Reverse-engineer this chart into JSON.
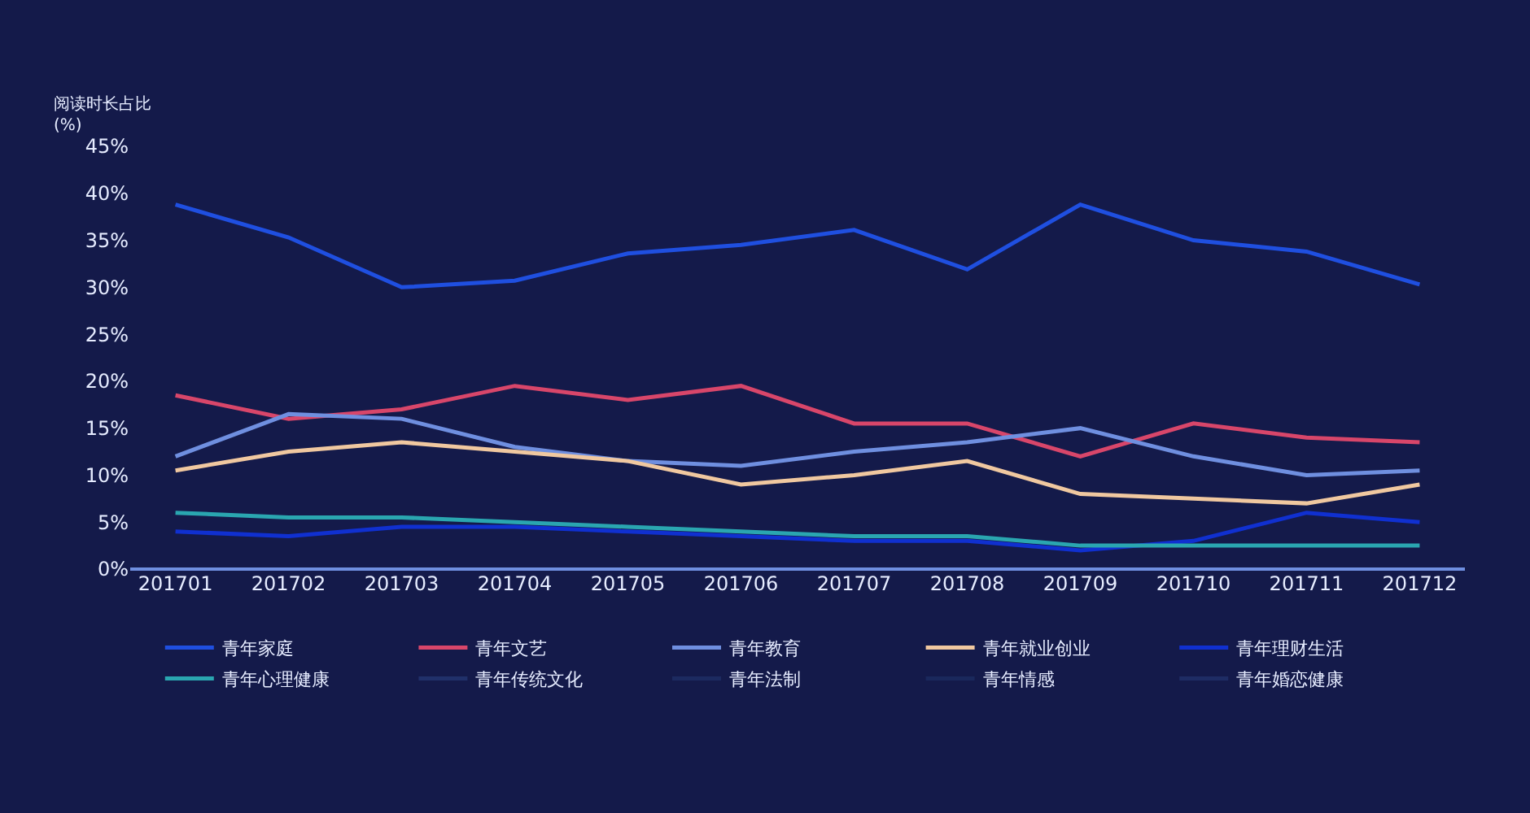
{
  "chart_data": {
    "type": "line",
    "ylabel": "阅读时长占比\n(%)",
    "categories": [
      "201701",
      "201702",
      "201703",
      "201704",
      "201705",
      "201706",
      "201707",
      "201708",
      "201709",
      "201710",
      "201711",
      "201712"
    ],
    "series": [
      {
        "name": "青年家庭",
        "color": "#1f4fe0",
        "values": [
          38.8,
          35.3,
          30,
          30.7,
          33.6,
          34.5,
          36.1,
          31.9,
          38.8,
          35,
          33.8,
          30.3
        ]
      },
      {
        "name": "青年文艺",
        "color": "#d8466a",
        "values": [
          18.5,
          16,
          17,
          19.5,
          18,
          19.5,
          15.5,
          15.5,
          12,
          15.5,
          14,
          13.5
        ]
      },
      {
        "name": "青年教育",
        "color": "#6f8fe0",
        "values": [
          12,
          16.5,
          16,
          13,
          11.5,
          11,
          12.5,
          13.5,
          15,
          12,
          10,
          10.5
        ]
      },
      {
        "name": "青年就业创业",
        "color": "#f0c8a0",
        "values": [
          10.5,
          12.5,
          13.5,
          12.5,
          11.5,
          9,
          10,
          11.5,
          8,
          7.5,
          7,
          9
        ]
      },
      {
        "name": "青年理财生活",
        "color": "#1030d0",
        "values": [
          4,
          3.5,
          4.5,
          4.5,
          4,
          3.5,
          3,
          3,
          2,
          3,
          6,
          5
        ]
      },
      {
        "name": "青年心理健康",
        "color": "#2aa6b0",
        "values": [
          6,
          5.5,
          5.5,
          5,
          4.5,
          4,
          3.5,
          3.5,
          2.5,
          2.5,
          2.5,
          2.5
        ]
      },
      {
        "name": "青年传统文化",
        "color": "#20306a",
        "values": [
          null,
          null,
          null,
          null,
          null,
          null,
          null,
          null,
          null,
          null,
          null,
          null
        ]
      },
      {
        "name": "青年法制",
        "color": "#1c2a60",
        "values": [
          null,
          null,
          null,
          null,
          null,
          null,
          null,
          null,
          null,
          null,
          null,
          null
        ]
      },
      {
        "name": "青年情感",
        "color": "#1a285c",
        "values": [
          null,
          null,
          null,
          null,
          null,
          null,
          null,
          null,
          null,
          null,
          null,
          null
        ]
      },
      {
        "name": "青年婚恋健康",
        "color": "#1e2c64",
        "values": [
          null,
          null,
          null,
          null,
          null,
          null,
          null,
          null,
          null,
          null,
          null,
          null
        ]
      }
    ],
    "ylim": [
      0,
      45
    ],
    "yticks": [
      {
        "value": 0,
        "label": "0%"
      },
      {
        "value": 5,
        "label": "5%"
      },
      {
        "value": 10,
        "label": "10%"
      },
      {
        "value": 15,
        "label": "15%"
      },
      {
        "value": 20,
        "label": "20%"
      },
      {
        "value": 25,
        "label": "25%"
      },
      {
        "value": 30,
        "label": "30%"
      },
      {
        "value": 35,
        "label": "35%"
      },
      {
        "value": 40,
        "label": "40%"
      },
      {
        "value": 45,
        "label": "45%"
      }
    ],
    "grid": false,
    "legend": "bottom",
    "marker": "none",
    "line_style": "solid"
  }
}
